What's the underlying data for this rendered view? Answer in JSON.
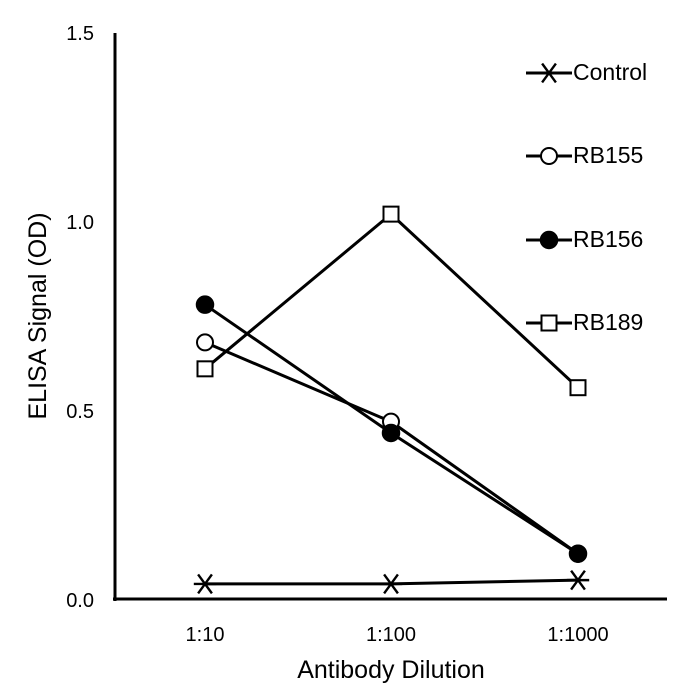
{
  "chart_data": {
    "type": "line",
    "xlabel": "Antibody Dilution",
    "ylabel": "ELISA Signal (OD)",
    "categories": [
      "1:10",
      "1:100",
      "1:1000"
    ],
    "ylim": [
      0,
      1.5
    ],
    "yticks": [
      "0.0",
      "0.5",
      "1.0",
      "1.5"
    ],
    "grid": false,
    "legend_position": "top-right",
    "series": [
      {
        "name": "Control",
        "marker": "star",
        "values": [
          0.04,
          0.04,
          0.05
        ]
      },
      {
        "name": "RB155",
        "marker": "open-circle",
        "values": [
          0.68,
          0.47,
          0.12
        ]
      },
      {
        "name": "RB156",
        "marker": "filled-circle",
        "values": [
          0.78,
          0.44,
          0.12
        ]
      },
      {
        "name": "RB189",
        "marker": "open-square",
        "values": [
          0.61,
          1.02,
          0.56
        ]
      }
    ],
    "colors": {
      "line": "#000000",
      "marker_fill_open": "#ffffff",
      "marker_fill_filled": "#000000"
    }
  }
}
